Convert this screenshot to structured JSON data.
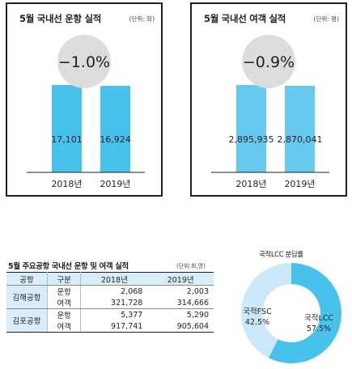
{
  "colors": {
    "bar": "#47c2ec",
    "bar_light": "#66c9ee",
    "circle": "#dcdcdc",
    "donut_lcc": "#47c2ec",
    "donut_fsc": "#c9e9f8",
    "table_header": "#d7edf9"
  },
  "chart_data": [
    {
      "type": "bar",
      "title": "5월 국내선 운항 실적",
      "unit": "(단위: 회)",
      "categories": [
        "2018년",
        "2019년"
      ],
      "values": [
        17101,
        16924
      ],
      "value_labels": [
        "17,101",
        "16,924"
      ],
      "change": "−1.0%"
    },
    {
      "type": "bar",
      "title": "5월 국내선 여객 실적",
      "unit": "(단위: 명)",
      "categories": [
        "2018년",
        "2019년"
      ],
      "values": [
        2895935,
        2870041
      ],
      "value_labels": [
        "2,895,935",
        "2,870,041"
      ],
      "change": "−0.9%"
    },
    {
      "type": "table",
      "title": "5월 주요공항 국내선 운항 및 여객 실적",
      "unit": "(단위:회,명)",
      "columns": [
        "공항",
        "구분",
        "2018년",
        "2019년"
      ],
      "rows": [
        {
          "airport": "김해공항",
          "category": "운항",
          "y2018": "2,068",
          "y2019": "2,003"
        },
        {
          "airport": "김해공항",
          "category": "여객",
          "y2018": "321,728",
          "y2019": "314,666"
        },
        {
          "airport": "김포공항",
          "category": "운항",
          "y2018": "5,377",
          "y2019": "5,290"
        },
        {
          "airport": "김포공항",
          "category": "여객",
          "y2018": "917,741",
          "y2019": "905,604"
        }
      ]
    },
    {
      "type": "pie",
      "title": "국적LCC 분담률",
      "donut": true,
      "slices": [
        {
          "name": "국적LCC",
          "value": 57.5,
          "label": "57.5%"
        },
        {
          "name": "국적FSC",
          "value": 42.5,
          "label": "42.5%"
        }
      ]
    }
  ]
}
